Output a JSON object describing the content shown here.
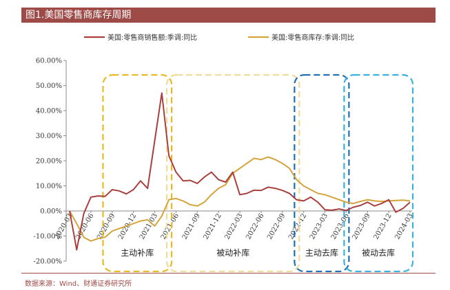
{
  "header": {
    "title": "图1.美国零售商库存周期"
  },
  "footer": {
    "source": "数据来源：Wind、财通证券研究所"
  },
  "colors": {
    "sales": "#a83f3c",
    "inventory": "#d4a33a",
    "box_yellow_strong": "#e8b923",
    "box_yellow_light": "#f0dc9a",
    "box_blue_dark": "#1f6fb2",
    "box_blue_light": "#3ab0de",
    "title_bg": "#9e4a47"
  },
  "chart_data": {
    "type": "line",
    "title": "",
    "xlabel": "",
    "ylabel": "",
    "ylim": [
      -20,
      60
    ],
    "yticks": [
      "-20.00%",
      "-10.00%",
      "0.00%",
      "10.00%",
      "20.00%",
      "30.00%",
      "40.00%",
      "50.00%",
      "60.00%"
    ],
    "x": [
      "2020-03",
      "2020-04",
      "2020-05",
      "2020-06",
      "2020-07",
      "2020-08",
      "2020-09",
      "2020-10",
      "2020-11",
      "2020-12",
      "2021-01",
      "2021-02",
      "2021-03",
      "2021-04",
      "2021-05",
      "2021-06",
      "2021-07",
      "2021-08",
      "2021-09",
      "2021-10",
      "2021-11",
      "2021-12",
      "2022-01",
      "2022-02",
      "2022-03",
      "2022-04",
      "2022-05",
      "2022-06",
      "2022-07",
      "2022-08",
      "2022-09",
      "2022-10",
      "2022-11",
      "2022-12",
      "2023-01",
      "2023-02",
      "2023-03",
      "2023-04",
      "2023-05",
      "2023-06",
      "2023-07",
      "2023-08",
      "2023-09",
      "2023-10",
      "2023-11",
      "2023-12",
      "2024-01",
      "2024-02",
      "2024-03"
    ],
    "xtick_labels": [
      "2020-03",
      "2020-06",
      "2020-09",
      "2020-12",
      "2021-03",
      "2021-06",
      "2021-09",
      "2021-12",
      "2022-03",
      "2022-06",
      "2022-09",
      "2022-12",
      "2023-03",
      "2023-06",
      "2023-09",
      "2023-12",
      "2024-03"
    ],
    "series": [
      {
        "name": "美国:零售商销售额:季调:同比",
        "values": [
          0,
          -15.5,
          -1,
          5.5,
          6,
          5.8,
          8.5,
          8,
          6.8,
          8.5,
          12,
          9,
          28,
          47,
          22,
          15.5,
          12,
          12.2,
          11,
          13.5,
          15.5,
          12.5,
          11.5,
          15.5,
          6.5,
          7,
          8.3,
          8.2,
          9.5,
          9,
          8.2,
          7,
          4.5,
          4,
          5.5,
          3.5,
          0.5,
          0.3,
          0.8,
          0.2,
          1.5,
          2.2,
          3.5,
          2,
          3,
          4.5,
          -0.5,
          1,
          3.5
        ]
      },
      {
        "name": "美国:零售商库存:季调:同比",
        "values": [
          0,
          -5,
          -10.5,
          -12,
          -11,
          -10.5,
          -8,
          -7,
          -6,
          -5,
          -4,
          -3.5,
          -6,
          -2,
          4.5,
          5,
          4,
          2.5,
          2,
          3.5,
          6.5,
          9,
          10.5,
          15,
          17,
          19,
          21,
          20.5,
          21.5,
          20.5,
          19,
          17,
          12.5,
          10,
          8.5,
          7,
          6.5,
          5.5,
          4.5,
          3.5,
          3,
          3.8,
          4.5,
          4,
          3.8,
          4,
          4.2,
          4.3,
          4
        ]
      }
    ],
    "legend": "top-center",
    "annotations": [
      "主动补库",
      "被动补库",
      "主动去库",
      "被动去库"
    ]
  }
}
